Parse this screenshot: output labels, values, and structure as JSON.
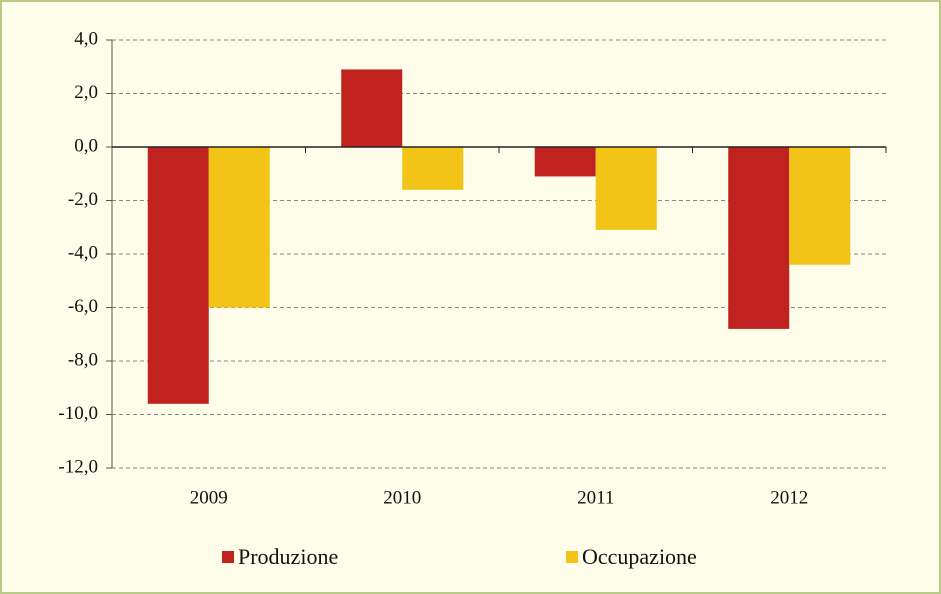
{
  "chart_data": {
    "type": "bar",
    "categories": [
      "2009",
      "2010",
      "2011",
      "2012"
    ],
    "series": [
      {
        "name": "Produzione",
        "color": "#c0231f",
        "values": [
          -9.6,
          2.9,
          -1.1,
          -6.8
        ]
      },
      {
        "name": "Occupazione",
        "color": "#f2c417",
        "values": [
          -6.0,
          -1.6,
          -3.1,
          -4.4
        ]
      }
    ],
    "ylim": [
      -12,
      4
    ],
    "yticks": [
      {
        "value": 4,
        "label": "4,0"
      },
      {
        "value": 2,
        "label": "2,0"
      },
      {
        "value": 0,
        "label": "0,0"
      },
      {
        "value": -2,
        "label": "-2,0"
      },
      {
        "value": -4,
        "label": "-4,0"
      },
      {
        "value": -6,
        "label": "-6,0"
      },
      {
        "value": -8,
        "label": "-8,0"
      },
      {
        "value": -10,
        "label": "-10,0"
      },
      {
        "value": -12,
        "label": "-12,0"
      }
    ],
    "grid": true,
    "legend": "bottom"
  }
}
